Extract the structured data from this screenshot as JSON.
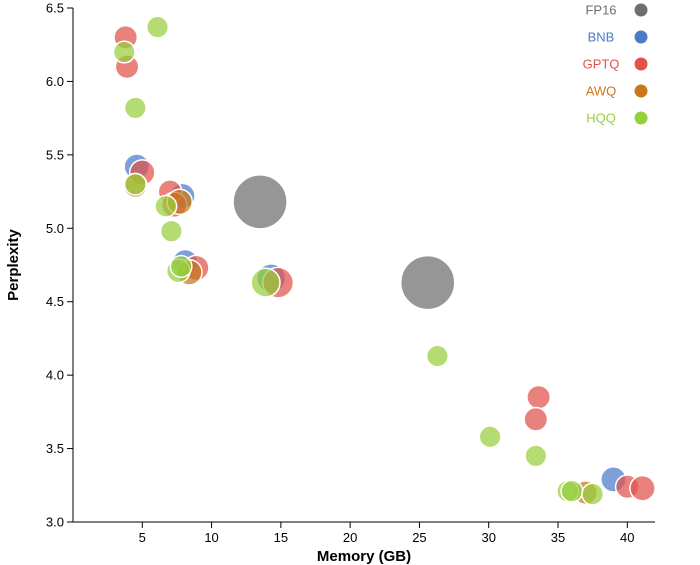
{
  "chart_data": {
    "type": "scatter",
    "xlabel": "Memory (GB)",
    "ylabel": "Perplexity",
    "xlim": [
      0,
      42
    ],
    "ylim": [
      3.0,
      6.5
    ],
    "xticks": [
      "5",
      "10",
      "15",
      "20",
      "25",
      "30",
      "35",
      "40"
    ],
    "yticks": [
      "3.0",
      "3.5",
      "4.0",
      "4.5",
      "5.0",
      "5.5",
      "6.0",
      "6.5"
    ],
    "legend_position": "top-right",
    "series": [
      {
        "name": "FP16",
        "color": "#6e6e6e",
        "points": [
          {
            "x": 13.5,
            "y": 5.18,
            "size": 3
          },
          {
            "x": 25.6,
            "y": 4.63,
            "size": 3
          }
        ]
      },
      {
        "name": "BNB",
        "color": "#4a7cc7",
        "points": [
          {
            "x": 4.6,
            "y": 5.42,
            "size": 1.4
          },
          {
            "x": 7.9,
            "y": 5.22,
            "size": 1.4
          },
          {
            "x": 8.1,
            "y": 4.77,
            "size": 1.4
          },
          {
            "x": 14.3,
            "y": 4.66,
            "size": 1.6
          },
          {
            "x": 39.0,
            "y": 3.29,
            "size": 1.4
          }
        ]
      },
      {
        "name": "GPTQ",
        "color": "#e0524a",
        "points": [
          {
            "x": 3.8,
            "y": 6.3,
            "size": 1.3
          },
          {
            "x": 3.9,
            "y": 6.1,
            "size": 1.3
          },
          {
            "x": 5.0,
            "y": 5.38,
            "size": 1.4
          },
          {
            "x": 7.0,
            "y": 5.25,
            "size": 1.3
          },
          {
            "x": 7.3,
            "y": 5.16,
            "size": 1.4
          },
          {
            "x": 8.9,
            "y": 4.73,
            "size": 1.4
          },
          {
            "x": 14.8,
            "y": 4.63,
            "size": 1.7
          },
          {
            "x": 33.6,
            "y": 3.85,
            "size": 1.3
          },
          {
            "x": 33.4,
            "y": 3.7,
            "size": 1.3
          },
          {
            "x": 40.0,
            "y": 3.24,
            "size": 1.3
          },
          {
            "x": 41.1,
            "y": 3.23,
            "size": 1.4
          }
        ]
      },
      {
        "name": "AWQ",
        "color": "#c8771a",
        "points": [
          {
            "x": 4.5,
            "y": 5.29,
            "size": 1.3
          },
          {
            "x": 7.7,
            "y": 5.18,
            "size": 1.4
          },
          {
            "x": 8.4,
            "y": 4.7,
            "size": 1.4
          },
          {
            "x": 37.0,
            "y": 3.2,
            "size": 1.3
          }
        ]
      },
      {
        "name": "HQQ",
        "color": "#97cf3b",
        "points": [
          {
            "x": 6.1,
            "y": 6.37,
            "size": 1.2
          },
          {
            "x": 3.7,
            "y": 6.2,
            "size": 1.2
          },
          {
            "x": 4.5,
            "y": 5.82,
            "size": 1.2
          },
          {
            "x": 4.5,
            "y": 5.3,
            "size": 1.2
          },
          {
            "x": 6.7,
            "y": 5.15,
            "size": 1.2
          },
          {
            "x": 7.1,
            "y": 4.98,
            "size": 1.2
          },
          {
            "x": 7.6,
            "y": 4.71,
            "size": 1.3
          },
          {
            "x": 7.8,
            "y": 4.74,
            "size": 1.2
          },
          {
            "x": 13.9,
            "y": 4.63,
            "size": 1.6
          },
          {
            "x": 26.3,
            "y": 4.13,
            "size": 1.2
          },
          {
            "x": 30.1,
            "y": 3.58,
            "size": 1.2
          },
          {
            "x": 33.4,
            "y": 3.45,
            "size": 1.2
          },
          {
            "x": 35.7,
            "y": 3.21,
            "size": 1.2
          },
          {
            "x": 36.0,
            "y": 3.21,
            "size": 1.2
          },
          {
            "x": 37.5,
            "y": 3.19,
            "size": 1.2
          }
        ]
      }
    ]
  }
}
